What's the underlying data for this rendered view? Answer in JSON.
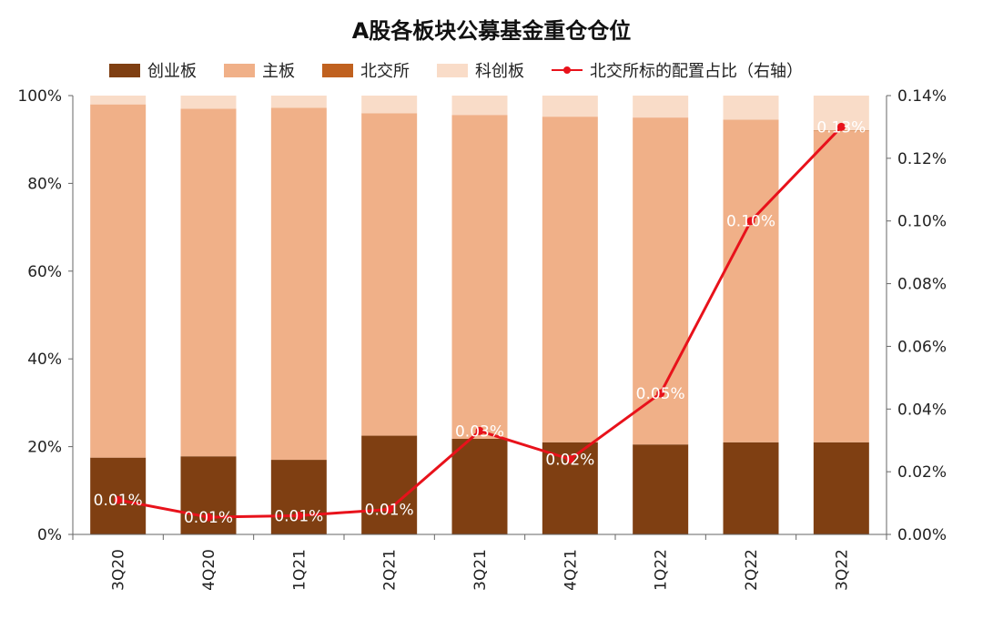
{
  "chart_data": {
    "type": "bar",
    "stacked": true,
    "title": "A股各板块公募基金重仓仓位",
    "categories": [
      "3Q20",
      "4Q20",
      "1Q21",
      "2Q21",
      "3Q21",
      "4Q21",
      "1Q22",
      "2Q22",
      "3Q22"
    ],
    "series": [
      {
        "name": "创业板",
        "type": "bar",
        "color": "#7f3f12",
        "values": [
          17.5,
          17.8,
          17.0,
          22.5,
          21.8,
          21.0,
          20.5,
          21.0,
          21.0
        ]
      },
      {
        "name": "主板",
        "type": "bar",
        "color": "#f0b088",
        "values": [
          80.5,
          79.2,
          80.2,
          73.5,
          73.8,
          74.2,
          74.5,
          73.5,
          71.0
        ]
      },
      {
        "name": "北交所",
        "type": "bar",
        "color": "#c0611f",
        "values": [
          0.0,
          0.0,
          0.0,
          0.0,
          0.0,
          0.0,
          0.0,
          0.0,
          0.1
        ]
      },
      {
        "name": "科创板",
        "type": "bar",
        "color": "#f9dcc8",
        "values": [
          2.0,
          3.0,
          2.8,
          4.0,
          4.4,
          4.8,
          5.0,
          5.5,
          7.9
        ]
      },
      {
        "name": "北交所标的配置占比（右轴）",
        "type": "line",
        "axis": "right",
        "color": "#e8121b",
        "values": [
          0.011,
          0.0055,
          0.006,
          0.008,
          0.033,
          0.024,
          0.045,
          0.1,
          0.13
        ],
        "labels": [
          "0.01%",
          "0.01%",
          "0.01%",
          "0.01%",
          "0.03%",
          "0.02%",
          "0.05%",
          "0.10%",
          "0.13%"
        ]
      }
    ],
    "ylim": [
      0,
      100
    ],
    "yticks": [
      "0%",
      "20%",
      "40%",
      "60%",
      "80%",
      "100%"
    ],
    "y2lim": [
      0,
      0.14
    ],
    "y2ticks": [
      "0.00%",
      "0.02%",
      "0.04%",
      "0.06%",
      "0.08%",
      "0.10%",
      "0.12%",
      "0.14%"
    ],
    "legend_position": "top",
    "grid": false
  }
}
